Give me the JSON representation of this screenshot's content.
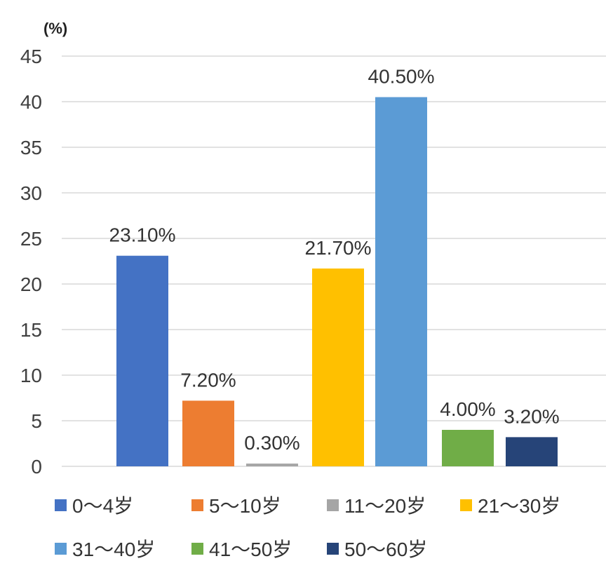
{
  "chart_data": {
    "type": "bar",
    "unit_label": "(%)",
    "categories": [
      "0～4岁",
      "5～10岁",
      "11～20岁",
      "21～30岁",
      "31～40岁",
      "41～50岁",
      "50～60岁"
    ],
    "values": [
      23.1,
      7.2,
      0.3,
      21.7,
      40.5,
      4.0,
      3.2
    ],
    "data_labels": [
      "23.10%",
      "7.20%",
      "0.30%",
      "21.70%",
      "40.50%",
      "4.00%",
      "3.20%"
    ],
    "colors": [
      "#4472C4",
      "#ED7D31",
      "#A5A5A5",
      "#FFC000",
      "#5B9BD5",
      "#70AD47",
      "#264478"
    ],
    "ylim": [
      0,
      45
    ],
    "yticks": [
      0,
      5,
      10,
      15,
      20,
      25,
      30,
      35,
      40,
      45
    ],
    "grid": true,
    "legend_position": "bottom"
  }
}
